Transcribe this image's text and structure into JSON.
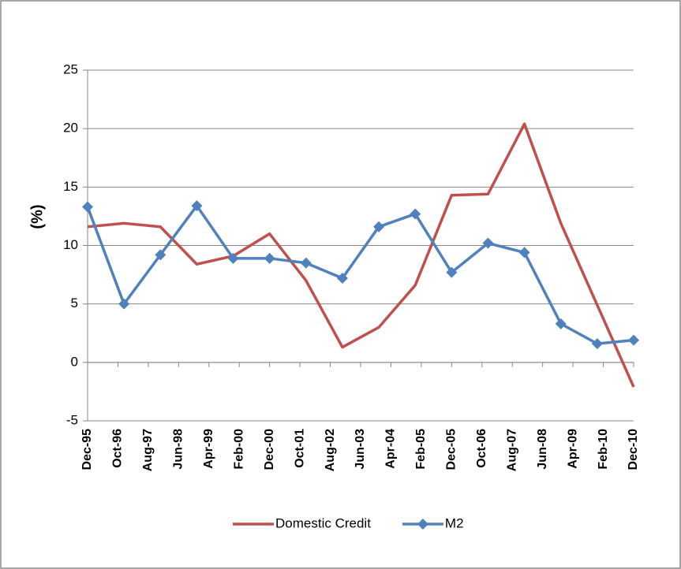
{
  "chart_data": {
    "type": "line",
    "y_label": "(%)",
    "x": [
      "1995-12",
      "1996-12",
      "1997-12",
      "1998-12",
      "1999-12",
      "2000-12",
      "2001-12",
      "2002-12",
      "2003-12",
      "2004-12",
      "2005-12",
      "2006-12",
      "2007-12",
      "2008-12",
      "2009-12",
      "2010-12"
    ],
    "xlim": [
      "1995-12",
      "2010-12"
    ],
    "xticks": [
      {
        "value": "1995-12",
        "label": "Dec-95"
      },
      {
        "value": "1996-10",
        "label": "Oct-96"
      },
      {
        "value": "1997-08",
        "label": "Aug-97"
      },
      {
        "value": "1998-06",
        "label": "Jun-98"
      },
      {
        "value": "1999-04",
        "label": "Apr-99"
      },
      {
        "value": "2000-02",
        "label": "Feb-00"
      },
      {
        "value": "2000-12",
        "label": "Dec-00"
      },
      {
        "value": "2001-10",
        "label": "Oct-01"
      },
      {
        "value": "2002-08",
        "label": "Aug-02"
      },
      {
        "value": "2003-06",
        "label": "Jun-03"
      },
      {
        "value": "2004-04",
        "label": "Apr-04"
      },
      {
        "value": "2005-02",
        "label": "Feb-05"
      },
      {
        "value": "2005-12",
        "label": "Dec-05"
      },
      {
        "value": "2006-10",
        "label": "Oct-06"
      },
      {
        "value": "2007-08",
        "label": "Aug-07"
      },
      {
        "value": "2008-06",
        "label": "Jun-08"
      },
      {
        "value": "2009-04",
        "label": "Apr-09"
      },
      {
        "value": "2010-02",
        "label": "Feb-10"
      },
      {
        "value": "2010-12",
        "label": "Dec-10"
      }
    ],
    "ylim": [
      -5,
      25
    ],
    "yticks": [
      -5,
      0,
      5,
      10,
      15,
      20,
      25
    ],
    "grid": true,
    "legend": "bottom",
    "series": [
      {
        "name": "Domestic Credit",
        "color": "#c0504d",
        "marker": false,
        "values": [
          11.6,
          11.9,
          11.6,
          8.4,
          9.1,
          11.0,
          7.0,
          1.3,
          3.0,
          6.6,
          14.3,
          14.4,
          20.4,
          11.9,
          4.9,
          -2.1
        ]
      },
      {
        "name": "M2",
        "color": "#4f81bd",
        "marker": true,
        "values": [
          13.3,
          5.0,
          9.2,
          13.4,
          8.9,
          8.9,
          8.5,
          7.2,
          11.6,
          12.7,
          7.7,
          10.2,
          9.4,
          3.3,
          1.6,
          1.9
        ]
      }
    ]
  }
}
